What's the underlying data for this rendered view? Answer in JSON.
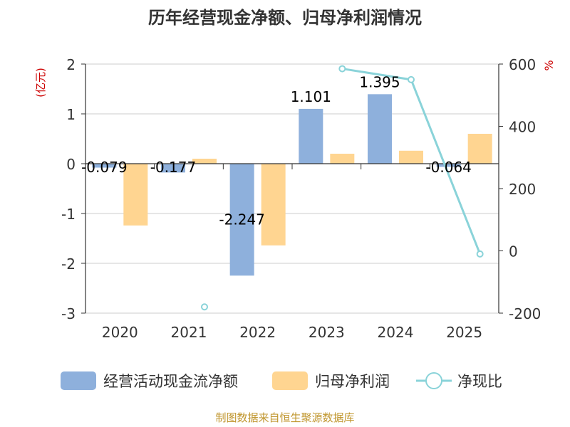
{
  "chart_data": {
    "type": "bar",
    "title": "历年经营现金净额、归母净利润情况",
    "categories": [
      "2020",
      "2021",
      "2022",
      "2023",
      "2024",
      "2025"
    ],
    "y_left": {
      "label": "(亿元)",
      "ylim": [
        -3,
        2
      ],
      "ticks": [
        2,
        1,
        0,
        -1,
        -2,
        -3
      ]
    },
    "y_right": {
      "label": "%",
      "ylim": [
        -200,
        600
      ],
      "ticks": [
        600,
        400,
        200,
        0,
        -200
      ]
    },
    "series": [
      {
        "name": "经营活动现金流净额",
        "type": "bar",
        "axis": "left",
        "color": "#8eb0dc",
        "values": [
          -0.079,
          -0.177,
          -2.247,
          1.101,
          1.395,
          -0.064
        ],
        "labels": [
          "-0.079",
          "-0.177",
          "-2.247",
          "1.101",
          "1.395",
          "-0.064"
        ]
      },
      {
        "name": "归母净利润",
        "type": "bar",
        "axis": "left",
        "color": "#ffd591",
        "values": [
          -1.24,
          0.1,
          -1.64,
          0.2,
          0.26,
          0.6
        ]
      },
      {
        "name": "净现比",
        "type": "line",
        "axis": "right",
        "color": "#8ad3d9",
        "values": [
          null,
          -180,
          null,
          585,
          550,
          -10
        ]
      }
    ],
    "legend_position": "bottom"
  },
  "source": "制图数据来自恒生聚源数据库"
}
